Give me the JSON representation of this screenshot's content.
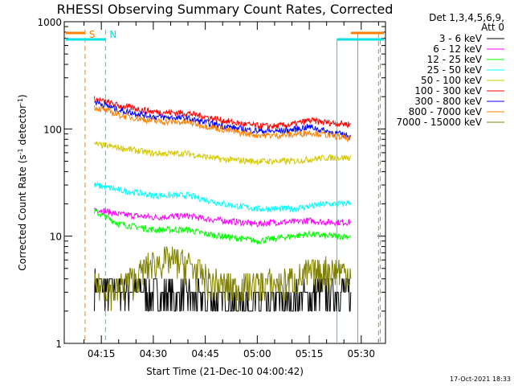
{
  "chart_data": {
    "type": "line",
    "title": "RHESSI Observing Summary Count Rates, Corrected",
    "xlabel": "Start Time (21-Dec-10 04:00:42)",
    "ylabel_main": "Corrected Count Rate (s",
    "ylabel_sup1": "-1",
    "ylabel_mid": " detector",
    "ylabel_sup2": "-1",
    "ylabel_end": ")",
    "yscale": "log",
    "ylim": [
      1,
      1000
    ],
    "xlim_minutes": [
      4.3,
      97
    ],
    "x_ticks": [
      {
        "minutes": 15,
        "label": "04:15"
      },
      {
        "minutes": 30,
        "label": "04:30"
      },
      {
        "minutes": 45,
        "label": "04:45"
      },
      {
        "minutes": 60,
        "label": "05:00"
      },
      {
        "minutes": 75,
        "label": "05:15"
      },
      {
        "minutes": 90,
        "label": "05:30"
      }
    ],
    "y_ticks": [
      {
        "value": 1,
        "label": "1"
      },
      {
        "value": 10,
        "label": "10"
      },
      {
        "value": 100,
        "label": "100"
      },
      {
        "value": 1000,
        "label": "1000"
      }
    ],
    "legend_header": [
      "Det 1,3,4,5,6,9,",
      "Att 0"
    ],
    "legend_position": "right",
    "markers": [
      {
        "label": "S",
        "minutes": 10.3,
        "color": "#ff8000"
      },
      {
        "label": "N",
        "minutes": 16.2,
        "color": "#00e0e0"
      }
    ],
    "series": [
      {
        "name": "3 - 6 keV",
        "color": "#000000",
        "x": [
          13,
          20,
          30,
          40,
          45,
          50,
          55,
          60,
          65,
          70,
          75,
          80,
          85,
          87
        ],
        "y": [
          3.5,
          3.3,
          3.0,
          2.8,
          2.5,
          2.6,
          2.5,
          2.4,
          2.5,
          2.6,
          3.0,
          3.1,
          3.2,
          3.0
        ]
      },
      {
        "name": "6 - 12 keV",
        "color": "#ff00ff",
        "x": [
          13,
          20,
          30,
          40,
          45,
          50,
          55,
          60,
          65,
          70,
          75,
          80,
          85,
          87
        ],
        "y": [
          18,
          16,
          15,
          15.5,
          14.5,
          14,
          13.5,
          13,
          13.5,
          13.5,
          14,
          13.5,
          13.5,
          13.5
        ]
      },
      {
        "name": "12 - 25 keV",
        "color": "#00ff00",
        "x": [
          13,
          20,
          30,
          40,
          45,
          50,
          55,
          60,
          65,
          70,
          75,
          80,
          85,
          87
        ],
        "y": [
          17,
          13,
          11.5,
          11.5,
          10.5,
          10,
          9.5,
          9,
          9.5,
          10,
          10.5,
          10,
          10,
          10
        ]
      },
      {
        "name": "25 - 50 keV",
        "color": "#00ffff",
        "x": [
          13,
          20,
          30,
          40,
          45,
          50,
          55,
          60,
          65,
          70,
          75,
          80,
          85,
          87
        ],
        "y": [
          30,
          27,
          24,
          24,
          22,
          20,
          19,
          18,
          18,
          18,
          19,
          20,
          20,
          21
        ]
      },
      {
        "name": "50 - 100 keV",
        "color": "#d4c800",
        "x": [
          13,
          20,
          30,
          40,
          45,
          50,
          55,
          60,
          65,
          70,
          75,
          80,
          85,
          87
        ],
        "y": [
          72,
          67,
          59,
          59,
          55,
          52,
          51,
          50,
          50,
          50,
          52,
          54,
          54,
          54
        ]
      },
      {
        "name": "100 - 300 keV",
        "color": "#ff0000",
        "x": [
          13,
          20,
          30,
          40,
          45,
          50,
          55,
          60,
          65,
          70,
          75,
          80,
          85,
          87
        ],
        "y": [
          190,
          165,
          145,
          140,
          130,
          120,
          112,
          107,
          106,
          110,
          120,
          115,
          112,
          110
        ]
      },
      {
        "name": "300 - 800 keV",
        "color": "#0000ff",
        "x": [
          13,
          20,
          30,
          40,
          45,
          50,
          55,
          60,
          65,
          70,
          75,
          80,
          85,
          87
        ],
        "y": [
          180,
          150,
          130,
          125,
          115,
          107,
          100,
          96,
          95,
          98,
          105,
          95,
          88,
          85
        ]
      },
      {
        "name": "800 - 7000 keV",
        "color": "#ff8000",
        "x": [
          13,
          20,
          30,
          40,
          45,
          50,
          55,
          60,
          65,
          70,
          75,
          80,
          85,
          87
        ],
        "y": [
          160,
          135,
          118,
          115,
          107,
          99,
          92,
          88,
          87,
          88,
          93,
          88,
          83,
          80
        ]
      },
      {
        "name": "7000 - 15000 keV",
        "color": "#808000",
        "x": [
          13,
          20,
          25,
          30,
          35,
          40,
          45,
          50,
          55,
          60,
          65,
          70,
          75,
          80,
          85,
          87
        ],
        "y": [
          3.5,
          3.2,
          4.2,
          5.5,
          6.0,
          5.5,
          4.0,
          3.4,
          3.3,
          3.6,
          3.6,
          3.8,
          4.5,
          4.8,
          4.8,
          4.5
        ]
      }
    ]
  },
  "footer_timestamp": "17-Oct-2021 18:33"
}
